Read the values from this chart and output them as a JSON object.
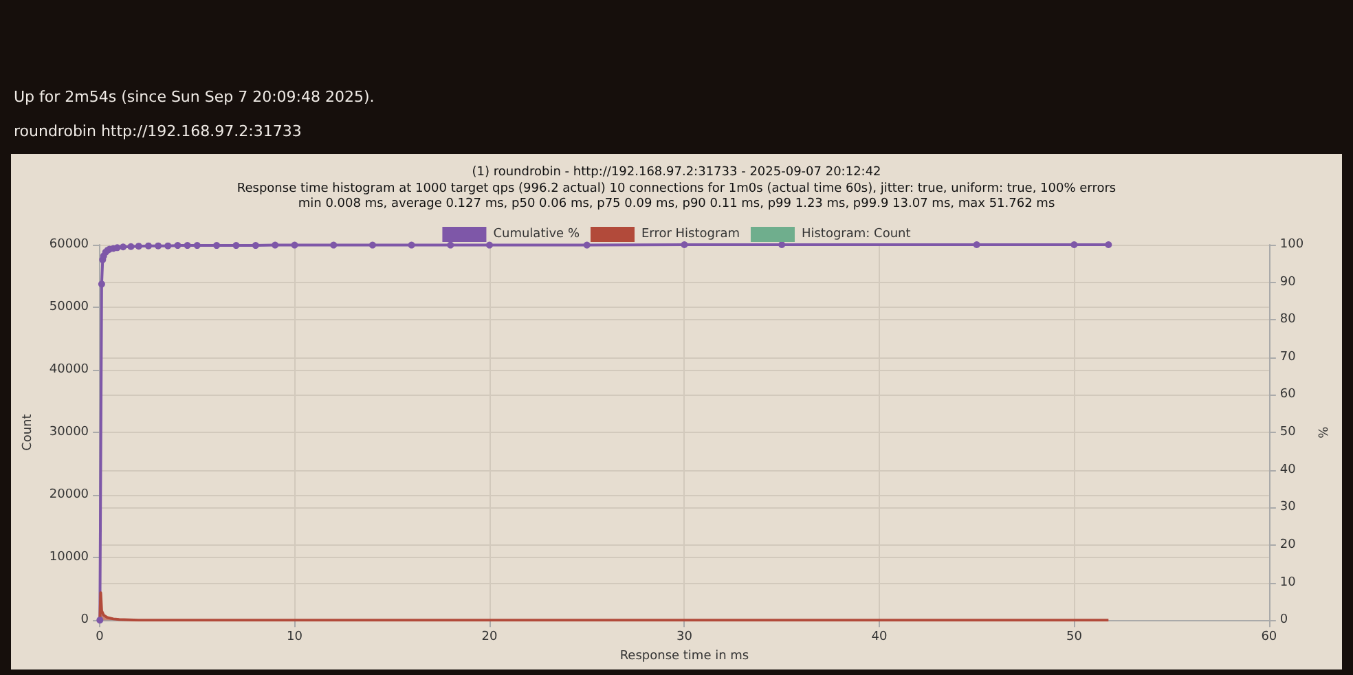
{
  "chart_data": {
    "type": "line",
    "title": "(1) roundrobin - http://192.168.97.2:31733 - 2025-09-07 20:12:42",
    "subtitle": "Response time histogram at 1000 target qps (996.2 actual) 10 connections for 1m0s (actual time 60s), jitter: true, uniform: true, 100% errors\nmin 0.008 ms, average 0.127 ms, p50 0.06 ms, p75 0.09 ms, p90 0.11 ms, p99 1.23 ms, p99.9 13.07 ms, max 51.762 ms",
    "annotations": [
      "Up for 2m54s (since Sun Sep 7 20:09:48 2025).",
      "roundrobin http://192.168.97.2:31733"
    ],
    "xlabel": "Response time in ms",
    "ylabel": "Count",
    "y2label": "%",
    "xlim": [
      0,
      60
    ],
    "xticks": [
      0,
      10,
      20,
      30,
      40,
      50,
      60
    ],
    "ylim": [
      0,
      60000
    ],
    "yticks": [
      0,
      10000,
      20000,
      30000,
      40000,
      50000,
      60000
    ],
    "y2lim": [
      0,
      100
    ],
    "y2ticks": [
      0,
      10,
      20,
      30,
      40,
      50,
      60,
      70,
      80,
      90,
      100
    ],
    "grid": true,
    "legend": "top",
    "series": [
      {
        "name": "Cumulative %",
        "color": "#7e57a8",
        "axis": "y2",
        "marker": "circle",
        "x": [
          0.008,
          0.1,
          0.15,
          0.2,
          0.3,
          0.4,
          0.5,
          0.7,
          0.9,
          1.2,
          1.6,
          2,
          2.5,
          3,
          3.5,
          4,
          4.5,
          5,
          6,
          7,
          8,
          9,
          10,
          12,
          14,
          16,
          18,
          20,
          25,
          30,
          35,
          45,
          50,
          51.762
        ],
        "values": [
          0,
          89.5,
          96,
          97,
          98,
          98.5,
          98.8,
          99,
          99.2,
          99.4,
          99.5,
          99.6,
          99.7,
          99.7,
          99.7,
          99.8,
          99.8,
          99.8,
          99.8,
          99.8,
          99.8,
          99.9,
          99.9,
          99.9,
          99.9,
          99.9,
          99.9,
          99.9,
          99.9,
          100,
          100,
          100,
          100,
          100
        ]
      },
      {
        "name": "Error Histogram",
        "color": "#b24a3a",
        "type": "area",
        "marker": "none",
        "x": [
          0.008,
          0.05,
          0.1,
          0.2,
          0.4,
          0.7,
          1,
          2,
          5,
          10,
          51.762
        ],
        "values": [
          0,
          4400,
          1500,
          800,
          400,
          200,
          100,
          0,
          0,
          0,
          0
        ]
      },
      {
        "name": "Histogram: Count",
        "color": "#6fae8d",
        "type": "area",
        "marker": "none"
      }
    ]
  }
}
